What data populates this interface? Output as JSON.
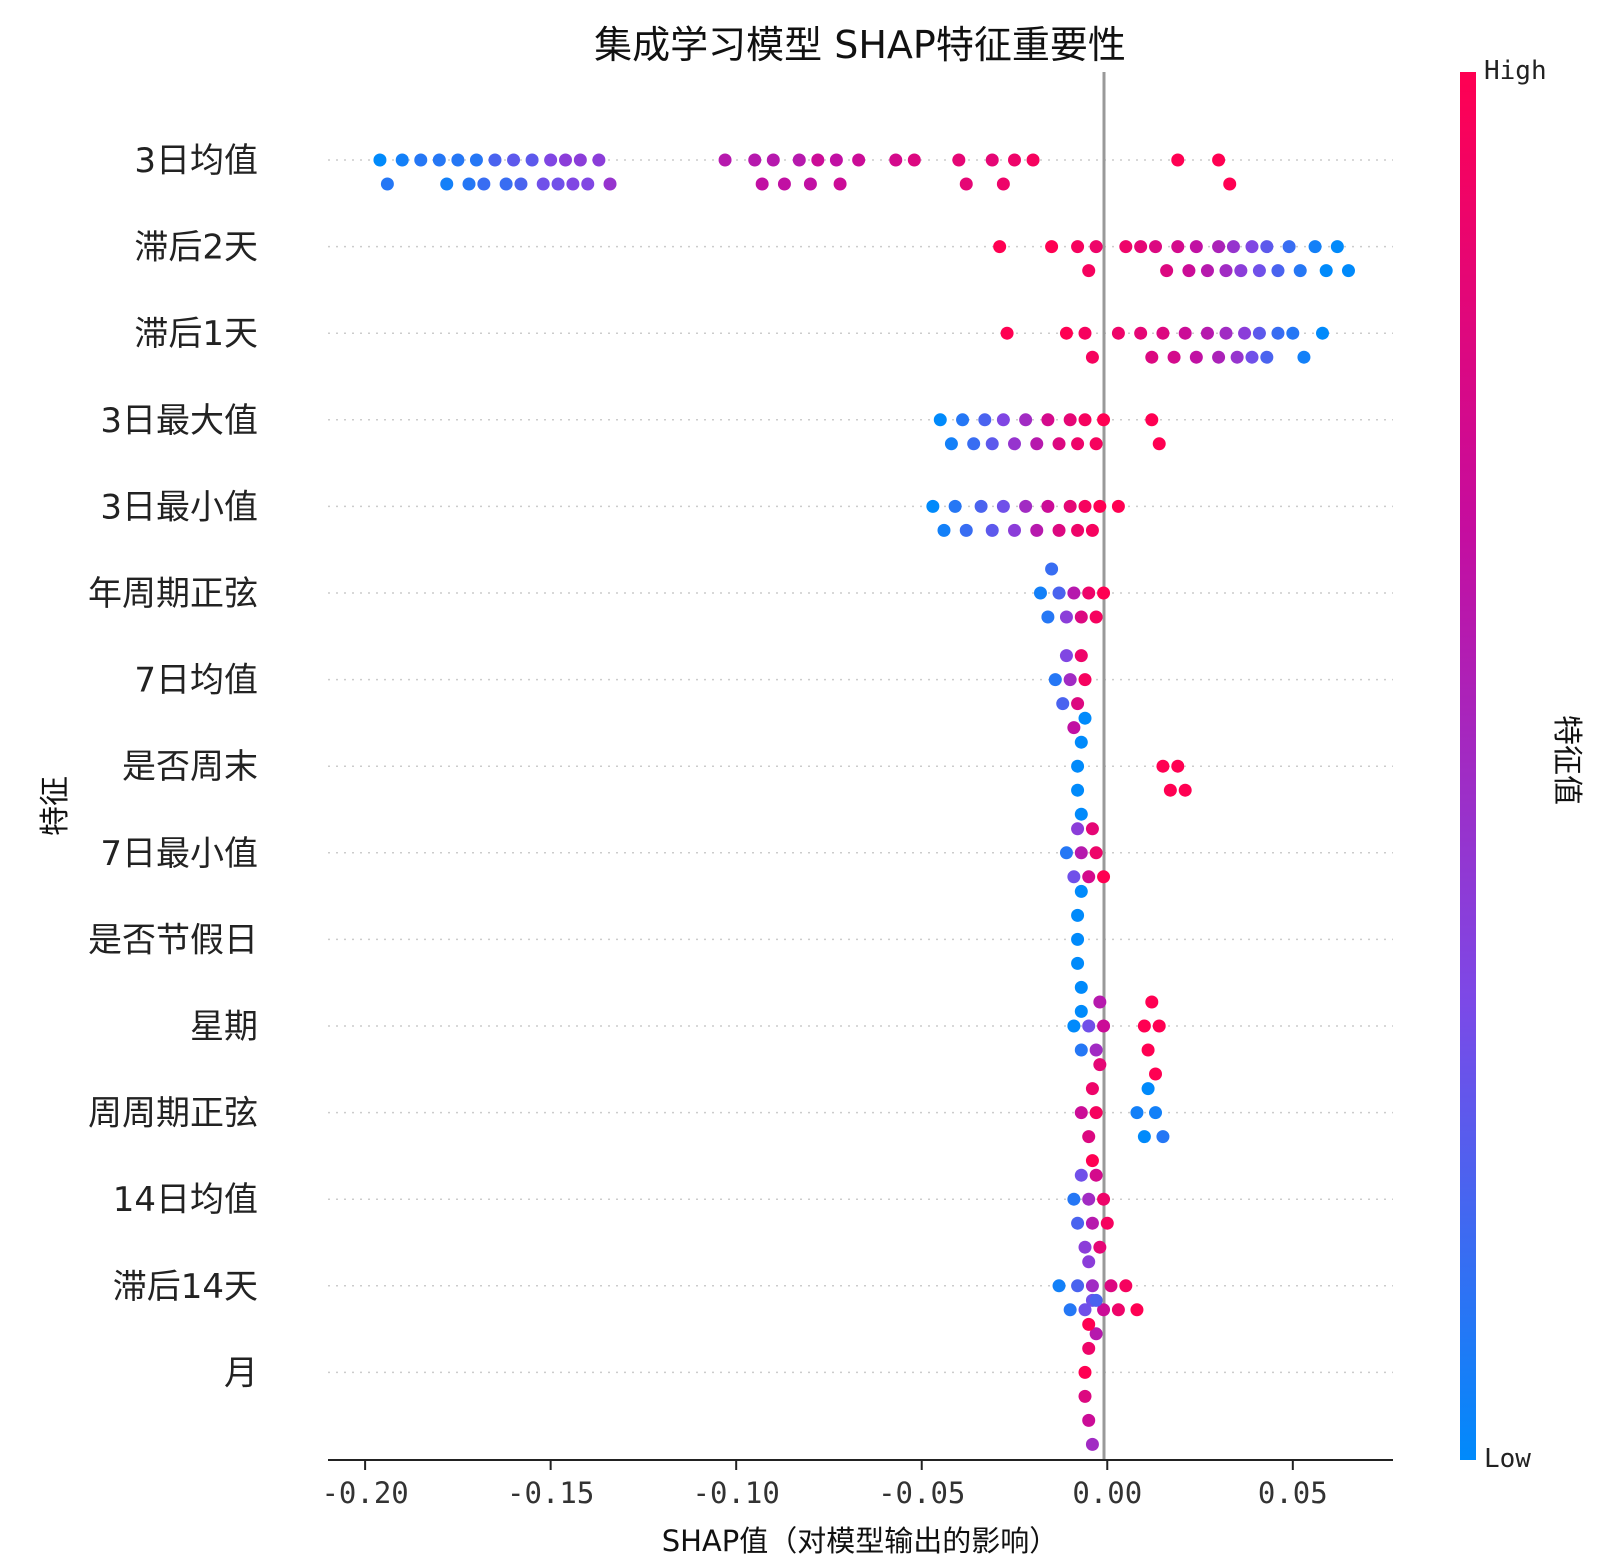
{
  "chart_data": {
    "type": "scatter",
    "subtype": "shap-beeswarm-summary",
    "title": "集成学习模型 SHAP特征重要性",
    "xlabel": "SHAP值（对模型输出的影响）",
    "ylabel": "特征",
    "xlim": [
      -0.21,
      0.077
    ],
    "xticks": [
      -0.2,
      -0.15,
      -0.1,
      -0.05,
      0.0,
      0.05
    ],
    "xtick_labels": [
      "-0.20",
      "-0.15",
      "-0.10",
      "-0.05",
      "0.00",
      "0.05"
    ],
    "colorbar": {
      "label": "特征值",
      "high_label": "High",
      "low_label": "Low",
      "colors": [
        "#008afb",
        "#7c49e7",
        "#c50d9f",
        "#ff0052"
      ]
    },
    "zero_line_color": "#999999",
    "grid": "dotted horizontal per feature row",
    "features": [
      {
        "name": "3日均值",
        "points": [
          [
            -0.196,
            0.0
          ],
          [
            -0.194,
            0.1
          ],
          [
            -0.19,
            0.05
          ],
          [
            -0.185,
            0.1
          ],
          [
            -0.18,
            0.1
          ],
          [
            -0.178,
            0.05
          ],
          [
            -0.175,
            0.1
          ],
          [
            -0.172,
            0.1
          ],
          [
            -0.17,
            0.1
          ],
          [
            -0.168,
            0.15
          ],
          [
            -0.165,
            0.2
          ],
          [
            -0.162,
            0.15
          ],
          [
            -0.16,
            0.25
          ],
          [
            -0.158,
            0.2
          ],
          [
            -0.155,
            0.25
          ],
          [
            -0.152,
            0.3
          ],
          [
            -0.15,
            0.35
          ],
          [
            -0.148,
            0.3
          ],
          [
            -0.146,
            0.4
          ],
          [
            -0.144,
            0.35
          ],
          [
            -0.142,
            0.4
          ],
          [
            -0.14,
            0.35
          ],
          [
            -0.137,
            0.4
          ],
          [
            -0.134,
            0.45
          ],
          [
            -0.103,
            0.6
          ],
          [
            -0.095,
            0.6
          ],
          [
            -0.093,
            0.65
          ],
          [
            -0.09,
            0.6
          ],
          [
            -0.087,
            0.65
          ],
          [
            -0.083,
            0.6
          ],
          [
            -0.08,
            0.65
          ],
          [
            -0.078,
            0.7
          ],
          [
            -0.073,
            0.65
          ],
          [
            -0.072,
            0.7
          ],
          [
            -0.067,
            0.7
          ],
          [
            -0.057,
            0.75
          ],
          [
            -0.052,
            0.8
          ],
          [
            -0.04,
            0.85
          ],
          [
            -0.038,
            0.85
          ],
          [
            -0.031,
            0.85
          ],
          [
            -0.028,
            0.9
          ],
          [
            -0.025,
            0.9
          ],
          [
            -0.02,
            0.95
          ],
          [
            0.019,
            1.0
          ],
          [
            0.03,
            1.0
          ],
          [
            0.033,
            1.0
          ]
        ]
      },
      {
        "name": "滞后2天",
        "points": [
          [
            -0.029,
            1.0
          ],
          [
            -0.015,
            1.0
          ],
          [
            -0.008,
            0.95
          ],
          [
            -0.005,
            0.95
          ],
          [
            -0.003,
            0.9
          ],
          [
            0.005,
            0.9
          ],
          [
            0.009,
            0.85
          ],
          [
            0.013,
            0.8
          ],
          [
            0.016,
            0.8
          ],
          [
            0.019,
            0.75
          ],
          [
            0.022,
            0.7
          ],
          [
            0.024,
            0.65
          ],
          [
            0.027,
            0.6
          ],
          [
            0.03,
            0.55
          ],
          [
            0.032,
            0.5
          ],
          [
            0.034,
            0.45
          ],
          [
            0.036,
            0.4
          ],
          [
            0.039,
            0.35
          ],
          [
            0.041,
            0.3
          ],
          [
            0.043,
            0.25
          ],
          [
            0.046,
            0.2
          ],
          [
            0.049,
            0.15
          ],
          [
            0.052,
            0.1
          ],
          [
            0.056,
            0.05
          ],
          [
            0.059,
            0.0
          ],
          [
            0.062,
            0.0
          ],
          [
            0.065,
            0.0
          ]
        ]
      },
      {
        "name": "滞后1天",
        "points": [
          [
            -0.027,
            1.0
          ],
          [
            -0.011,
            1.0
          ],
          [
            -0.006,
            0.95
          ],
          [
            -0.004,
            0.95
          ],
          [
            0.003,
            0.9
          ],
          [
            0.009,
            0.85
          ],
          [
            0.012,
            0.8
          ],
          [
            0.015,
            0.8
          ],
          [
            0.018,
            0.75
          ],
          [
            0.021,
            0.7
          ],
          [
            0.024,
            0.65
          ],
          [
            0.027,
            0.6
          ],
          [
            0.03,
            0.55
          ],
          [
            0.032,
            0.5
          ],
          [
            0.035,
            0.45
          ],
          [
            0.037,
            0.4
          ],
          [
            0.039,
            0.3
          ],
          [
            0.041,
            0.25
          ],
          [
            0.043,
            0.2
          ],
          [
            0.046,
            0.15
          ],
          [
            0.05,
            0.1
          ],
          [
            0.053,
            0.05
          ],
          [
            0.058,
            0.0
          ]
        ]
      },
      {
        "name": "3日最大值",
        "points": [
          [
            -0.045,
            0.0
          ],
          [
            -0.042,
            0.05
          ],
          [
            -0.039,
            0.1
          ],
          [
            -0.036,
            0.15
          ],
          [
            -0.033,
            0.2
          ],
          [
            -0.031,
            0.25
          ],
          [
            -0.028,
            0.35
          ],
          [
            -0.025,
            0.45
          ],
          [
            -0.022,
            0.5
          ],
          [
            -0.019,
            0.6
          ],
          [
            -0.016,
            0.75
          ],
          [
            -0.013,
            0.8
          ],
          [
            -0.01,
            0.85
          ],
          [
            -0.008,
            0.9
          ],
          [
            -0.006,
            0.95
          ],
          [
            -0.003,
            0.95
          ],
          [
            -0.001,
            1.0
          ],
          [
            0.012,
            1.0
          ],
          [
            0.014,
            1.0
          ]
        ]
      },
      {
        "name": "3日最小值",
        "points": [
          [
            -0.047,
            0.0
          ],
          [
            -0.044,
            0.05
          ],
          [
            -0.041,
            0.1
          ],
          [
            -0.038,
            0.15
          ],
          [
            -0.034,
            0.2
          ],
          [
            -0.031,
            0.25
          ],
          [
            -0.028,
            0.3
          ],
          [
            -0.025,
            0.4
          ],
          [
            -0.022,
            0.5
          ],
          [
            -0.019,
            0.6
          ],
          [
            -0.016,
            0.7
          ],
          [
            -0.013,
            0.8
          ],
          [
            -0.01,
            0.85
          ],
          [
            -0.008,
            0.9
          ],
          [
            -0.006,
            0.95
          ],
          [
            -0.004,
            0.95
          ],
          [
            -0.002,
            1.0
          ],
          [
            0.003,
            1.0
          ]
        ]
      },
      {
        "name": "年周期正弦",
        "points": [
          [
            -0.018,
            0.05
          ],
          [
            -0.016,
            0.1
          ],
          [
            -0.015,
            0.15
          ],
          [
            -0.013,
            0.2
          ],
          [
            -0.011,
            0.4
          ],
          [
            -0.009,
            0.6
          ],
          [
            -0.007,
            0.8
          ],
          [
            -0.005,
            0.9
          ],
          [
            -0.003,
            0.95
          ],
          [
            -0.001,
            1.0
          ]
        ]
      },
      {
        "name": "7日均值",
        "points": [
          [
            -0.014,
            0.1
          ],
          [
            -0.012,
            0.2
          ],
          [
            -0.011,
            0.35
          ],
          [
            -0.01,
            0.5
          ],
          [
            -0.009,
            0.65
          ],
          [
            -0.008,
            0.8
          ],
          [
            -0.007,
            0.9
          ],
          [
            -0.006,
            0.95
          ]
        ]
      },
      {
        "name": "是否周末",
        "points": [
          [
            -0.008,
            0.0
          ],
          [
            -0.007,
            0.0
          ],
          [
            -0.006,
            0.0
          ],
          [
            -0.008,
            0.0
          ],
          [
            -0.007,
            0.0
          ],
          [
            0.015,
            1.0
          ],
          [
            0.017,
            1.0
          ],
          [
            0.019,
            1.0
          ],
          [
            0.021,
            1.0
          ]
        ]
      },
      {
        "name": "7日最小值",
        "points": [
          [
            -0.011,
            0.1
          ],
          [
            -0.009,
            0.3
          ],
          [
            -0.008,
            0.4
          ],
          [
            -0.007,
            0.6
          ],
          [
            -0.005,
            0.75
          ],
          [
            -0.004,
            0.85
          ],
          [
            -0.003,
            0.9
          ],
          [
            -0.001,
            1.0
          ]
        ]
      },
      {
        "name": "是否节假日",
        "points": [
          [
            -0.008,
            0.0
          ],
          [
            -0.007,
            0.0
          ],
          [
            -0.008,
            0.0
          ],
          [
            -0.007,
            0.0
          ],
          [
            -0.008,
            0.0
          ],
          [
            -0.007,
            0.0
          ]
        ]
      },
      {
        "name": "星期",
        "points": [
          [
            -0.009,
            0.0
          ],
          [
            -0.007,
            0.1
          ],
          [
            -0.005,
            0.3
          ],
          [
            -0.003,
            0.5
          ],
          [
            -0.002,
            0.6
          ],
          [
            -0.001,
            0.7
          ],
          [
            0.01,
            1.0
          ],
          [
            0.011,
            1.0
          ],
          [
            0.012,
            1.0
          ],
          [
            0.013,
            1.0
          ],
          [
            0.014,
            1.0
          ]
        ]
      },
      {
        "name": "周周期正弦",
        "points": [
          [
            -0.007,
            0.7
          ],
          [
            -0.005,
            0.8
          ],
          [
            -0.004,
            0.9
          ],
          [
            -0.004,
            1.0
          ],
          [
            -0.003,
            0.95
          ],
          [
            -0.002,
            0.85
          ],
          [
            0.008,
            0.05
          ],
          [
            0.01,
            0.0
          ],
          [
            0.011,
            0.0
          ],
          [
            0.013,
            0.05
          ],
          [
            0.015,
            0.1
          ]
        ]
      },
      {
        "name": "14日均值",
        "points": [
          [
            -0.009,
            0.1
          ],
          [
            -0.008,
            0.2
          ],
          [
            -0.007,
            0.3
          ],
          [
            -0.006,
            0.4
          ],
          [
            -0.005,
            0.5
          ],
          [
            -0.004,
            0.6
          ],
          [
            -0.003,
            0.75
          ],
          [
            -0.002,
            0.85
          ],
          [
            -0.001,
            0.9
          ],
          [
            0.0,
            0.95
          ]
        ]
      },
      {
        "name": "滞后14天",
        "points": [
          [
            -0.013,
            0.05
          ],
          [
            -0.01,
            0.1
          ],
          [
            -0.008,
            0.2
          ],
          [
            -0.006,
            0.3
          ],
          [
            -0.005,
            0.4
          ],
          [
            -0.004,
            0.5
          ],
          [
            -0.003,
            0.6
          ],
          [
            -0.001,
            0.7
          ],
          [
            0.001,
            0.8
          ],
          [
            0.003,
            0.9
          ],
          [
            0.005,
            0.95
          ],
          [
            0.008,
            1.0
          ]
        ]
      },
      {
        "name": "月",
        "points": [
          [
            -0.006,
            1.0
          ],
          [
            -0.005,
            0.9
          ],
          [
            -0.005,
            0.7
          ],
          [
            -0.004,
            0.5
          ],
          [
            -0.004,
            0.3
          ],
          [
            -0.003,
            0.2
          ],
          [
            -0.005,
            1.0
          ],
          [
            -0.006,
            0.8
          ]
        ]
      }
    ]
  }
}
